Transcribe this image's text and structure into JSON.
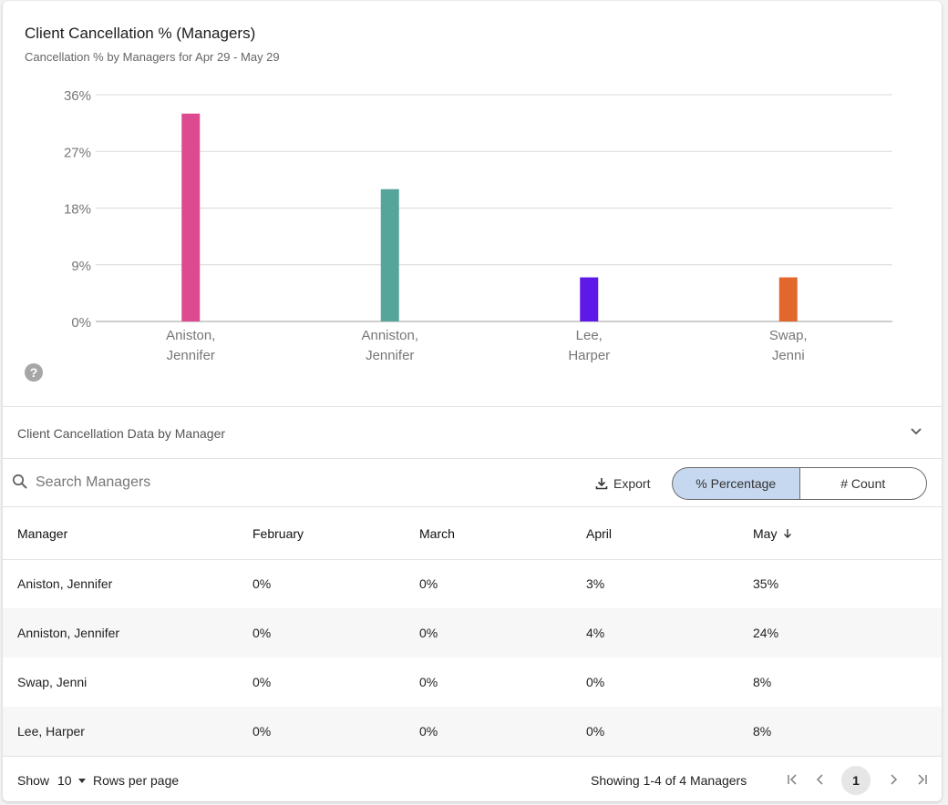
{
  "chart_data": {
    "type": "bar",
    "title": "Client Cancellation % (Managers)",
    "subtitle": "Cancellation % by Managers for Apr 29 - May 29",
    "categories": [
      [
        "Aniston,",
        "Jennifer"
      ],
      [
        "Anniston,",
        "Jennifer"
      ],
      [
        "Lee,",
        "Harper"
      ],
      [
        "Swap,",
        "Jenni"
      ]
    ],
    "values": [
      33,
      21,
      7,
      7
    ],
    "colors": [
      "#dd4a8f",
      "#55a59b",
      "#5e19e8",
      "#e2672c"
    ],
    "ylim": [
      0,
      36
    ],
    "yticks": [
      0,
      9,
      18,
      27,
      36
    ],
    "ytick_labels": [
      "0%",
      "9%",
      "18%",
      "27%",
      "36%"
    ],
    "grid": true,
    "xlabel": "",
    "ylabel": ""
  },
  "help": {
    "icon": "help-icon",
    "glyph": "?"
  },
  "section": {
    "title": "Client Cancellation Data by Manager",
    "icon": "chevron-down-icon"
  },
  "toolbar": {
    "search_placeholder": "Search Managers",
    "export_label": "Export",
    "toggle_percentage": "% Percentage",
    "toggle_count": "# Count",
    "active_toggle": "percentage"
  },
  "table": {
    "columns": [
      "Manager",
      "February",
      "March",
      "April",
      "May"
    ],
    "sort_column": "May",
    "sort_direction": "desc",
    "rows": [
      [
        "Aniston, Jennifer",
        "0%",
        "0%",
        "3%",
        "35%"
      ],
      [
        "Anniston, Jennifer",
        "0%",
        "0%",
        "4%",
        "24%"
      ],
      [
        "Swap, Jenni",
        "0%",
        "0%",
        "0%",
        "8%"
      ],
      [
        "Lee, Harper",
        "0%",
        "0%",
        "0%",
        "8%"
      ]
    ]
  },
  "footer": {
    "show_label": "Show",
    "rows_per_page": "10",
    "rows_per_page_label": "Rows per page",
    "showing_text": "Showing 1-4 of 4 Managers",
    "current_page": "1"
  },
  "colors": {
    "accent_toggle": "#c6d8ef",
    "grid": "#d9d9d9",
    "axis": "#bdbdbd"
  }
}
